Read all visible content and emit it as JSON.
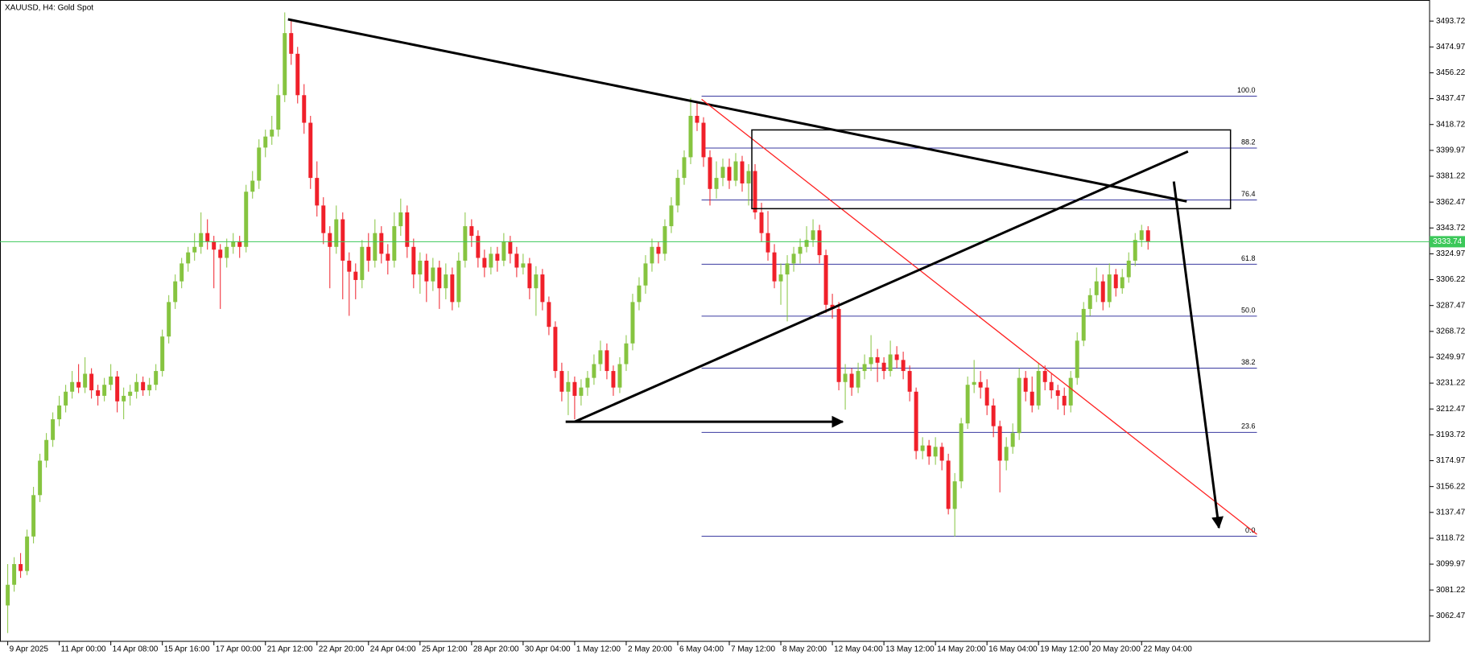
{
  "chart_data": {
    "type": "candlestick",
    "title": "XAUUSD, H4:  Gold Spot",
    "up_color": "#86c440",
    "down_color": "#f0202a",
    "last_price": 3333.74,
    "last_price_label": "3333.74",
    "last_price_color": "#3cc85a",
    "ylim": [
      3044,
      3509
    ],
    "xlim": [
      -1.2,
      220.7
    ],
    "yticks": [
      3062.47,
      3081.22,
      3099.97,
      3118.72,
      3137.47,
      3156.22,
      3174.97,
      3193.72,
      3212.47,
      3231.22,
      3249.97,
      3268.72,
      3287.47,
      3306.22,
      3324.97,
      3343.72,
      3362.47,
      3381.22,
      3399.97,
      3418.72,
      3437.47,
      3456.22,
      3474.97,
      3493.72
    ],
    "xticks": [
      {
        "value": 0,
        "label": "9 Apr 2025"
      },
      {
        "value": 8,
        "label": "11 Apr 00:00"
      },
      {
        "value": 16,
        "label": "14 Apr 08:00"
      },
      {
        "value": 24,
        "label": "15 Apr 16:00"
      },
      {
        "value": 32,
        "label": "17 Apr 00:00"
      },
      {
        "value": 40,
        "label": "21 Apr 12:00"
      },
      {
        "value": 48,
        "label": "22 Apr 20:00"
      },
      {
        "value": 56,
        "label": "24 Apr 04:00"
      },
      {
        "value": 64,
        "label": "25 Apr 12:00"
      },
      {
        "value": 72,
        "label": "28 Apr 20:00"
      },
      {
        "value": 80,
        "label": "30 Apr 04:00"
      },
      {
        "value": 88,
        "label": "1 May 12:00"
      },
      {
        "value": 96,
        "label": "2 May 20:00"
      },
      {
        "value": 104,
        "label": "6 May 04:00"
      },
      {
        "value": 112,
        "label": "7 May 12:00"
      },
      {
        "value": 120,
        "label": "8 May 20:00"
      },
      {
        "value": 128,
        "label": "12 May 04:00"
      },
      {
        "value": 136,
        "label": "13 May 12:00"
      },
      {
        "value": 144,
        "label": "14 May 20:00"
      },
      {
        "value": 152,
        "label": "16 May 04:00"
      },
      {
        "value": 160,
        "label": "19 May 12:00"
      },
      {
        "value": 168,
        "label": "20 May 20:00"
      },
      {
        "value": 176,
        "label": "22 May 04:00"
      }
    ],
    "candles": [
      [
        3070,
        3100,
        3050,
        3085
      ],
      [
        3085,
        3105,
        3080,
        3100
      ],
      [
        3100,
        3108,
        3090,
        3095
      ],
      [
        3095,
        3125,
        3092,
        3120
      ],
      [
        3120,
        3156,
        3115,
        3150
      ],
      [
        3150,
        3180,
        3145,
        3175
      ],
      [
        3175,
        3195,
        3170,
        3190
      ],
      [
        3190,
        3210,
        3185,
        3205
      ],
      [
        3205,
        3222,
        3200,
        3215
      ],
      [
        3215,
        3230,
        3210,
        3225
      ],
      [
        3225,
        3240,
        3220,
        3232
      ],
      [
        3232,
        3245,
        3224,
        3228
      ],
      [
        3228,
        3250,
        3224,
        3238
      ],
      [
        3238,
        3242,
        3220,
        3226
      ],
      [
        3226,
        3230,
        3215,
        3222
      ],
      [
        3222,
        3235,
        3218,
        3230
      ],
      [
        3230,
        3245,
        3226,
        3236
      ],
      [
        3236,
        3240,
        3210,
        3218
      ],
      [
        3218,
        3228,
        3205,
        3222
      ],
      [
        3222,
        3230,
        3215,
        3225
      ],
      [
        3225,
        3238,
        3220,
        3232
      ],
      [
        3232,
        3236,
        3222,
        3226
      ],
      [
        3226,
        3235,
        3222,
        3230
      ],
      [
        3230,
        3245,
        3226,
        3240
      ],
      [
        3240,
        3270,
        3236,
        3265
      ],
      [
        3265,
        3295,
        3260,
        3290
      ],
      [
        3290,
        3310,
        3285,
        3305
      ],
      [
        3305,
        3322,
        3300,
        3318
      ],
      [
        3318,
        3330,
        3312,
        3326
      ],
      [
        3326,
        3340,
        3320,
        3330
      ],
      [
        3330,
        3355,
        3325,
        3340
      ],
      [
        3340,
        3350,
        3328,
        3334
      ],
      [
        3334,
        3338,
        3300,
        3328
      ],
      [
        3328,
        3332,
        3285,
        3322
      ],
      [
        3322,
        3336,
        3315,
        3330
      ],
      [
        3330,
        3340,
        3325,
        3334
      ],
      [
        3334,
        3338,
        3322,
        3330
      ],
      [
        3330,
        3375,
        3326,
        3370
      ],
      [
        3370,
        3385,
        3365,
        3378
      ],
      [
        3378,
        3408,
        3372,
        3402
      ],
      [
        3402,
        3415,
        3395,
        3410
      ],
      [
        3410,
        3425,
        3404,
        3415
      ],
      [
        3415,
        3448,
        3410,
        3440
      ],
      [
        3440,
        3500,
        3435,
        3485
      ],
      [
        3485,
        3495,
        3462,
        3470
      ],
      [
        3470,
        3475,
        3434,
        3440
      ],
      [
        3440,
        3448,
        3412,
        3420
      ],
      [
        3420,
        3425,
        3372,
        3380
      ],
      [
        3380,
        3392,
        3352,
        3360
      ],
      [
        3360,
        3366,
        3332,
        3340
      ],
      [
        3340,
        3345,
        3300,
        3330
      ],
      [
        3330,
        3360,
        3325,
        3350
      ],
      [
        3350,
        3355,
        3292,
        3320
      ],
      [
        3320,
        3326,
        3280,
        3312
      ],
      [
        3312,
        3318,
        3292,
        3306
      ],
      [
        3306,
        3335,
        3300,
        3330
      ],
      [
        3330,
        3340,
        3312,
        3320
      ],
      [
        3320,
        3350,
        3315,
        3340
      ],
      [
        3340,
        3345,
        3318,
        3325
      ],
      [
        3325,
        3332,
        3310,
        3320
      ],
      [
        3320,
        3355,
        3315,
        3345
      ],
      [
        3345,
        3365,
        3338,
        3355
      ],
      [
        3355,
        3360,
        3322,
        3330
      ],
      [
        3330,
        3336,
        3300,
        3310
      ],
      [
        3310,
        3326,
        3296,
        3320
      ],
      [
        3320,
        3325,
        3290,
        3305
      ],
      [
        3305,
        3322,
        3298,
        3315
      ],
      [
        3315,
        3320,
        3285,
        3300
      ],
      [
        3300,
        3318,
        3292,
        3310
      ],
      [
        3310,
        3315,
        3284,
        3290
      ],
      [
        3290,
        3326,
        3286,
        3320
      ],
      [
        3320,
        3355,
        3315,
        3345
      ],
      [
        3345,
        3350,
        3330,
        3338
      ],
      [
        3338,
        3342,
        3315,
        3322
      ],
      [
        3322,
        3328,
        3308,
        3315
      ],
      [
        3315,
        3330,
        3310,
        3325
      ],
      [
        3325,
        3330,
        3312,
        3320
      ],
      [
        3320,
        3340,
        3316,
        3334
      ],
      [
        3334,
        3338,
        3318,
        3325
      ],
      [
        3325,
        3330,
        3308,
        3315
      ],
      [
        3315,
        3325,
        3310,
        3318
      ],
      [
        3318,
        3322,
        3292,
        3300
      ],
      [
        3300,
        3316,
        3280,
        3310
      ],
      [
        3310,
        3314,
        3284,
        3290
      ],
      [
        3290,
        3294,
        3266,
        3272
      ],
      [
        3272,
        3276,
        3235,
        3240
      ],
      [
        3240,
        3246,
        3218,
        3225
      ],
      [
        3225,
        3240,
        3208,
        3232
      ],
      [
        3232,
        3236,
        3205,
        3222
      ],
      [
        3222,
        3234,
        3215,
        3228
      ],
      [
        3228,
        3240,
        3222,
        3235
      ],
      [
        3235,
        3252,
        3230,
        3245
      ],
      [
        3245,
        3262,
        3240,
        3255
      ],
      [
        3255,
        3260,
        3234,
        3240
      ],
      [
        3240,
        3244,
        3222,
        3228
      ],
      [
        3228,
        3250,
        3224,
        3245
      ],
      [
        3245,
        3266,
        3240,
        3260
      ],
      [
        3260,
        3296,
        3255,
        3290
      ],
      [
        3290,
        3308,
        3284,
        3302
      ],
      [
        3302,
        3324,
        3296,
        3318
      ],
      [
        3318,
        3336,
        3312,
        3330
      ],
      [
        3330,
        3334,
        3318,
        3325
      ],
      [
        3325,
        3350,
        3320,
        3345
      ],
      [
        3345,
        3366,
        3340,
        3360
      ],
      [
        3360,
        3386,
        3355,
        3380
      ],
      [
        3380,
        3400,
        3375,
        3395
      ],
      [
        3395,
        3438,
        3390,
        3425
      ],
      [
        3425,
        3435,
        3414,
        3420
      ],
      [
        3420,
        3424,
        3388,
        3395
      ],
      [
        3395,
        3400,
        3360,
        3372
      ],
      [
        3372,
        3392,
        3365,
        3380
      ],
      [
        3380,
        3394,
        3374,
        3388
      ],
      [
        3388,
        3394,
        3372,
        3378
      ],
      [
        3378,
        3398,
        3374,
        3392
      ],
      [
        3392,
        3396,
        3370,
        3376
      ],
      [
        3376,
        3390,
        3360,
        3385
      ],
      [
        3385,
        3390,
        3350,
        3355
      ],
      [
        3355,
        3362,
        3334,
        3340
      ],
      [
        3340,
        3356,
        3320,
        3326
      ],
      [
        3326,
        3332,
        3300,
        3305
      ],
      [
        3305,
        3318,
        3288,
        3310
      ],
      [
        3310,
        3324,
        3276,
        3318
      ],
      [
        3318,
        3330,
        3312,
        3325
      ],
      [
        3325,
        3336,
        3318,
        3330
      ],
      [
        3330,
        3345,
        3326,
        3335
      ],
      [
        3335,
        3350,
        3330,
        3342
      ],
      [
        3342,
        3346,
        3318,
        3324
      ],
      [
        3324,
        3328,
        3282,
        3288
      ],
      [
        3288,
        3296,
        3278,
        3285
      ],
      [
        3285,
        3290,
        3226,
        3232
      ],
      [
        3232,
        3245,
        3212,
        3238
      ],
      [
        3238,
        3242,
        3222,
        3228
      ],
      [
        3228,
        3246,
        3224,
        3240
      ],
      [
        3240,
        3252,
        3234,
        3245
      ],
      [
        3245,
        3266,
        3240,
        3250
      ],
      [
        3250,
        3256,
        3232,
        3246
      ],
      [
        3246,
        3250,
        3234,
        3240
      ],
      [
        3240,
        3262,
        3236,
        3252
      ],
      [
        3252,
        3258,
        3242,
        3248
      ],
      [
        3248,
        3254,
        3234,
        3240
      ],
      [
        3240,
        3244,
        3218,
        3225
      ],
      [
        3225,
        3228,
        3176,
        3182
      ],
      [
        3182,
        3192,
        3176,
        3186
      ],
      [
        3186,
        3190,
        3172,
        3178
      ],
      [
        3178,
        3192,
        3172,
        3185
      ],
      [
        3185,
        3188,
        3168,
        3175
      ],
      [
        3175,
        3180,
        3136,
        3140
      ],
      [
        3140,
        3166,
        3120,
        3160
      ],
      [
        3160,
        3206,
        3155,
        3202
      ],
      [
        3202,
        3236,
        3198,
        3230
      ],
      [
        3230,
        3248,
        3224,
        3232
      ],
      [
        3232,
        3240,
        3220,
        3228
      ],
      [
        3228,
        3234,
        3208,
        3215
      ],
      [
        3215,
        3220,
        3192,
        3200
      ],
      [
        3200,
        3204,
        3152,
        3175
      ],
      [
        3175,
        3192,
        3168,
        3185
      ],
      [
        3185,
        3202,
        3180,
        3195
      ],
      [
        3195,
        3242,
        3190,
        3235
      ],
      [
        3235,
        3240,
        3218,
        3225
      ],
      [
        3225,
        3236,
        3210,
        3215
      ],
      [
        3215,
        3246,
        3212,
        3240
      ],
      [
        3240,
        3244,
        3226,
        3232
      ],
      [
        3232,
        3238,
        3220,
        3226
      ],
      [
        3226,
        3230,
        3212,
        3222
      ],
      [
        3222,
        3228,
        3208,
        3215
      ],
      [
        3215,
        3240,
        3210,
        3235
      ],
      [
        3235,
        3268,
        3230,
        3262
      ],
      [
        3262,
        3290,
        3258,
        3285
      ],
      [
        3285,
        3300,
        3280,
        3295
      ],
      [
        3295,
        3315,
        3290,
        3305
      ],
      [
        3305,
        3310,
        3284,
        3290
      ],
      [
        3290,
        3318,
        3286,
        3310
      ],
      [
        3310,
        3314,
        3294,
        3300
      ],
      [
        3300,
        3314,
        3296,
        3308
      ],
      [
        3308,
        3326,
        3304,
        3320
      ],
      [
        3320,
        3340,
        3316,
        3335
      ],
      [
        3335,
        3346,
        3330,
        3342
      ],
      [
        3342,
        3345,
        3328,
        3334
      ]
    ],
    "fibonacci": {
      "color": "#3a3aa0",
      "high": 3439.3,
      "low": 3120.2,
      "start": 107.7,
      "end": 193.9,
      "levels": [
        {
          "value": 100,
          "label": "100.0"
        },
        88.2,
        76.4,
        61.8,
        {
          "value": 50,
          "label": "50.0"
        },
        38.2,
        23.6,
        {
          "value": 0,
          "label": "0.0"
        }
      ]
    },
    "drawings": [
      {
        "kind": "line",
        "color": "#000000",
        "points": [
          [
            43.5,
            3495
          ],
          [
            183,
            3363
          ]
        ]
      },
      {
        "kind": "line",
        "color": "#ff2020",
        "points": [
          [
            107.7,
            3437
          ],
          [
            193.9,
            3121.6
          ]
        ]
      },
      {
        "kind": "line",
        "color": "#000000",
        "points": [
          [
            88,
            3203.2
          ],
          [
            183.2,
            3399.2
          ]
        ]
      },
      {
        "kind": "arrow",
        "color": "#000000",
        "points": [
          [
            86.6,
            3203.2
          ],
          [
            129.6,
            3203.2
          ]
        ]
      },
      {
        "kind": "arrow",
        "color": "#000000",
        "points": [
          [
            181,
            3377.4
          ],
          [
            188,
            3126.4
          ]
        ]
      },
      {
        "kind": "rect",
        "color": "#000000",
        "points": [
          [
            115.5,
            3414.8
          ],
          [
            189.8,
            3357.7
          ]
        ]
      }
    ]
  }
}
